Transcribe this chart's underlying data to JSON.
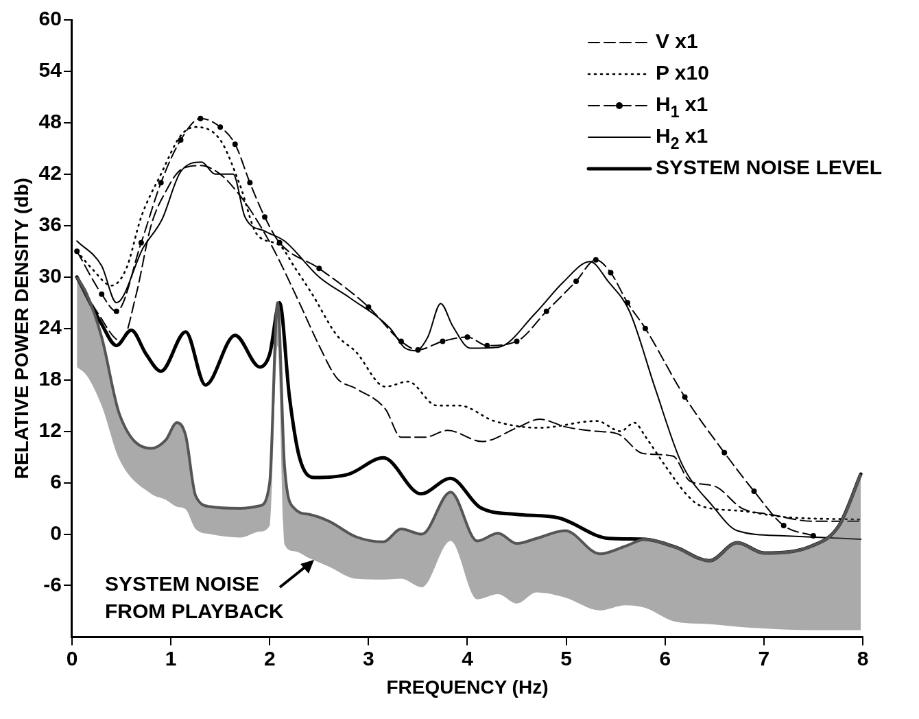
{
  "chart_data": {
    "type": "line",
    "xlabel": "FREQUENCY (Hz)",
    "ylabel": "RELATIVE POWER DENSITY (db)",
    "xlim": [
      0,
      8
    ],
    "xticks": [
      0,
      1,
      2,
      3,
      4,
      5,
      6,
      7,
      8
    ],
    "ylim": [
      -12,
      60
    ],
    "yticks": [
      -6,
      0,
      6,
      12,
      18,
      24,
      30,
      36,
      42,
      48,
      54,
      60
    ],
    "grid": false,
    "legend": "top right",
    "annotations": [
      {
        "text": "SYSTEM NOISE FROM PLAYBACK",
        "x": 2.45,
        "y": -3
      }
    ],
    "series": [
      {
        "type": "line",
        "color": "#555555",
        "x": [
          0.05,
          0.15,
          0.3,
          0.48,
          0.8,
          0.95,
          1.06,
          1.15,
          1.25,
          1.4,
          1.7,
          1.9,
          2.0,
          2.08,
          2.15,
          2.25,
          2.4,
          2.6,
          2.87,
          3.15,
          3.33,
          3.54,
          3.83,
          4.1,
          4.31,
          4.5,
          4.7,
          4.99,
          5.34,
          5.6,
          5.8,
          6.1,
          6.45,
          6.73,
          7.0,
          7.48,
          7.76,
          7.98
        ],
        "lower": [
          19.5,
          18.5,
          15,
          8.7,
          4.7,
          4,
          3.2,
          2.9,
          0.6,
          0,
          -0.4,
          0.3,
          1,
          22,
          -1.2,
          -2,
          -2.8,
          -3.8,
          -5.2,
          -5.3,
          -5.2,
          -6.2,
          -0.8,
          -7.6,
          -7,
          -8.1,
          -6.8,
          -7.4,
          -8.9,
          -8.3,
          -8.6,
          -10.2,
          -10.5,
          -10.8,
          -11,
          -11.2,
          -11.2,
          -11.2
        ],
        "values": [
          30,
          28,
          23,
          14,
          10,
          11,
          13,
          11.5,
          4.5,
          3.2,
          3,
          3.3,
          6,
          27,
          8,
          3,
          2.3,
          1.5,
          -0.3,
          -0.9,
          0.6,
          0,
          4.9,
          -0.8,
          0.1,
          -1.1,
          -0.5,
          0.4,
          -2.3,
          -1.4,
          -0.6,
          -1.5,
          -3.1,
          -1,
          -2.2,
          -1.4,
          1,
          7
        ],
        "upper": [
          30,
          28,
          23,
          14,
          10,
          11,
          13,
          11.5,
          4.5,
          3.2,
          3,
          3.3,
          6,
          27,
          8,
          3,
          2.3,
          1.5,
          -0.3,
          -0.9,
          0.6,
          0,
          4.9,
          -0.8,
          0.1,
          -1.1,
          -0.5,
          0.4,
          -2.3,
          -1.4,
          -0.6,
          -1.5,
          -3.1,
          -1,
          -2.2,
          -1.4,
          1,
          7
        ]
      },
      {
        "name": "V x1",
        "color": "#000000",
        "line_style": "dashed",
        "x": [
          0.05,
          0.25,
          0.5,
          0.65,
          0.8,
          0.95,
          1.1,
          1.3,
          1.5,
          1.7,
          1.85,
          2.05,
          2.3,
          2.5,
          2.68,
          2.87,
          3.17,
          3.33,
          3.57,
          3.8,
          4.15,
          4.5,
          4.73,
          5.0,
          5.3,
          5.52,
          5.78,
          6.08,
          6.25,
          6.5,
          6.78,
          7.06,
          7.5,
          8.0
        ],
        "values": [
          30,
          26,
          22.5,
          28,
          36,
          40,
          42.5,
          43,
          42,
          39.5,
          37,
          33,
          27,
          22,
          18.2,
          17,
          14.6,
          11.3,
          11.3,
          12.1,
          10.8,
          12.4,
          13.4,
          12.5,
          12,
          11.7,
          9.4,
          9.1,
          6.2,
          5.6,
          3,
          2.3,
          1.5,
          1.5
        ]
      },
      {
        "name": "P x10",
        "color": "#000000",
        "line_style": "dotted",
        "x": [
          0.05,
          0.2,
          0.4,
          0.55,
          0.7,
          0.9,
          1.1,
          1.25,
          1.5,
          1.7,
          1.87,
          2.1,
          2.26,
          2.43,
          2.68,
          2.87,
          3.17,
          3.4,
          3.69,
          3.92,
          4.27,
          4.73,
          5.31,
          5.55,
          5.69,
          5.8,
          6.0,
          6.22,
          6.36,
          6.78,
          7.2,
          7.98
        ],
        "values": [
          33,
          31,
          29,
          31,
          37,
          42,
          46.5,
          47.5,
          46,
          40.7,
          35,
          33.7,
          31,
          28,
          23.2,
          21.3,
          17.2,
          17.8,
          15,
          15,
          13.2,
          12.4,
          13.2,
          12,
          13,
          11.4,
          8,
          4.6,
          3.3,
          2.7,
          2,
          1.7
        ]
      },
      {
        "name": "H$_{1}$ x1",
        "color": "#000000",
        "line_style": "dashed",
        "marker": "circle",
        "x": [
          0.05,
          0.3,
          0.45,
          0.7,
          0.9,
          1.1,
          1.3,
          1.5,
          1.65,
          1.8,
          1.95,
          2.1,
          2.5,
          3.0,
          3.33,
          3.5,
          3.75,
          4.0,
          4.2,
          4.5,
          4.8,
          5.1,
          5.3,
          5.45,
          5.62,
          5.8,
          6.2,
          6.6,
          6.9,
          7.2,
          7.5
        ],
        "values": [
          33,
          28,
          26,
          34,
          41,
          46,
          48.5,
          47.5,
          45.5,
          41,
          37,
          34,
          31,
          26.5,
          22.5,
          21.5,
          22.5,
          23,
          22,
          22.5,
          26,
          29.5,
          32,
          30.5,
          27,
          24,
          16,
          9.5,
          5,
          1,
          -0.2
        ]
      },
      {
        "name": "H$_{2}$ x1",
        "color": "#000000",
        "line_style": "solid",
        "x": [
          0.05,
          0.3,
          0.45,
          0.72,
          0.91,
          1.1,
          1.31,
          1.45,
          1.63,
          1.75,
          1.96,
          2.15,
          2.5,
          2.82,
          3.22,
          3.36,
          3.48,
          3.6,
          3.73,
          3.85,
          4.03,
          4.31,
          4.69,
          4.97,
          5.24,
          5.43,
          5.64,
          5.9,
          6.17,
          6.48,
          6.73,
          7.2,
          7.98
        ],
        "values": [
          34.2,
          31.3,
          27,
          33.4,
          36.7,
          42.3,
          43.4,
          42,
          42,
          37,
          35.3,
          34.2,
          30,
          27.5,
          24,
          21.8,
          21.4,
          23,
          26.9,
          24.3,
          21.7,
          21.8,
          25.8,
          29.4,
          31.8,
          29.4,
          26,
          17,
          8.2,
          3.3,
          0.4,
          -0.2,
          -0.6
        ]
      },
      {
        "name": "SYSTEM NOISE LEVEL",
        "color": "#000000",
        "line_style": "solid",
        "x": [
          0.05,
          0.3,
          0.45,
          0.6,
          0.75,
          0.9,
          1.15,
          1.35,
          1.65,
          1.9,
          2.0,
          2.1,
          2.2,
          2.3,
          2.45,
          2.8,
          3.15,
          3.53,
          3.83,
          4.13,
          4.5,
          4.92,
          5.43,
          5.8,
          6.1,
          6.45,
          6.73,
          7.0,
          7.48,
          7.76,
          7.98
        ],
        "values": [
          30,
          24.5,
          22,
          23.8,
          21,
          19,
          23.6,
          17.4,
          23.2,
          19.5,
          21,
          27,
          16,
          9,
          6.6,
          7,
          8.9,
          4.7,
          6.5,
          3.1,
          2.3,
          1.9,
          -0.5,
          -0.6,
          -1.5,
          -3.1,
          -1,
          -2.2,
          -1.4,
          1,
          7
        ]
      }
    ]
  }
}
